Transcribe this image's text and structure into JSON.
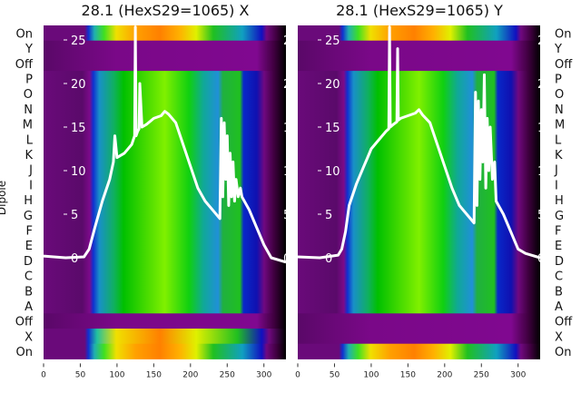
{
  "chart_data": [
    {
      "type": "heatmap",
      "title": "28.1 (HexS29=1065) X",
      "ylabel": "Dipole",
      "row_labels": [
        "On",
        "Y",
        "Off",
        "P",
        "O",
        "N",
        "M",
        "L",
        "K",
        "J",
        "I",
        "H",
        "G",
        "F",
        "E",
        "D",
        "C",
        "B",
        "A",
        "Off",
        "X",
        "On"
      ],
      "row_kinds": [
        "hot",
        "cold",
        "cold",
        "body",
        "body",
        "body",
        "body",
        "body",
        "body",
        "body",
        "body",
        "body",
        "body",
        "body",
        "body",
        "body",
        "body",
        "body",
        "body",
        "cold",
        "thin",
        "hot"
      ],
      "x_ticks": [
        0,
        50,
        100,
        150,
        200,
        250,
        300
      ],
      "xlim": [
        0,
        330
      ],
      "overlay": {
        "type": "line",
        "y_ticks": [
          0,
          5,
          10,
          15,
          20,
          25
        ],
        "ylim": [
          -1,
          26.5
        ],
        "x": [
          0,
          30,
          55,
          62,
          70,
          80,
          90,
          95,
          97,
          100,
          110,
          120,
          124,
          125,
          126,
          128,
          130,
          131,
          134,
          140,
          150,
          160,
          165,
          170,
          180,
          190,
          200,
          210,
          220,
          230,
          240,
          242,
          244,
          246,
          248,
          250,
          252,
          254,
          256,
          258,
          260,
          262,
          265,
          268,
          270,
          280,
          290,
          300,
          310,
          330
        ],
        "y": [
          0.2,
          0,
          0.1,
          1,
          3.5,
          6.5,
          9,
          11,
          14,
          11.5,
          12,
          13,
          14,
          26.5,
          14,
          14.5,
          14.8,
          20,
          15,
          15.3,
          16,
          16.3,
          16.8,
          16.5,
          15.5,
          13,
          10.5,
          8,
          6.5,
          5.5,
          4.5,
          16,
          7,
          15.5,
          9,
          14,
          6,
          12,
          7,
          11,
          6.5,
          9,
          7,
          8,
          7,
          5.5,
          3.5,
          1.5,
          0,
          -0.5
        ]
      }
    },
    {
      "type": "heatmap",
      "title": "28.1 (HexS29=1065) Y",
      "row_labels": [
        "On",
        "Y",
        "Off",
        "P",
        "O",
        "N",
        "M",
        "L",
        "K",
        "J",
        "I",
        "H",
        "G",
        "F",
        "E",
        "D",
        "C",
        "B",
        "A",
        "Off",
        "X",
        "On"
      ],
      "row_kinds": [
        "hot",
        "cold",
        "cold",
        "body",
        "body",
        "body",
        "body",
        "body",
        "body",
        "body",
        "body",
        "body",
        "body",
        "body",
        "body",
        "body",
        "body",
        "body",
        "body",
        "cold",
        "cold",
        "hot"
      ],
      "x_ticks": [
        0,
        50,
        100,
        150,
        200,
        250,
        300
      ],
      "xlim": [
        0,
        330
      ],
      "overlay": {
        "type": "line",
        "y_ticks": [
          0,
          5,
          10,
          15,
          20,
          25
        ],
        "ylim": [
          -1,
          26.5
        ],
        "x": [
          0,
          30,
          55,
          60,
          65,
          70,
          80,
          90,
          95,
          100,
          110,
          120,
          124,
          125,
          126,
          130,
          135,
          136,
          137,
          140,
          150,
          160,
          165,
          170,
          180,
          190,
          200,
          210,
          220,
          230,
          240,
          242,
          244,
          246,
          248,
          250,
          252,
          254,
          256,
          258,
          260,
          262,
          265,
          268,
          270,
          280,
          290,
          300,
          310,
          330
        ],
        "y": [
          0.1,
          0,
          0.3,
          1,
          3,
          6,
          8.5,
          10.5,
          11.5,
          12.5,
          13.5,
          14.5,
          14.8,
          26.5,
          15,
          15.3,
          15.6,
          24,
          15.8,
          16,
          16.3,
          16.6,
          17,
          16.4,
          15.5,
          13,
          10.5,
          8,
          6,
          5,
          4,
          19,
          6,
          18,
          9,
          17,
          11,
          21,
          8,
          16,
          10,
          15,
          9,
          11,
          6.5,
          5,
          3,
          1,
          0.5,
          0
        ]
      }
    }
  ]
}
